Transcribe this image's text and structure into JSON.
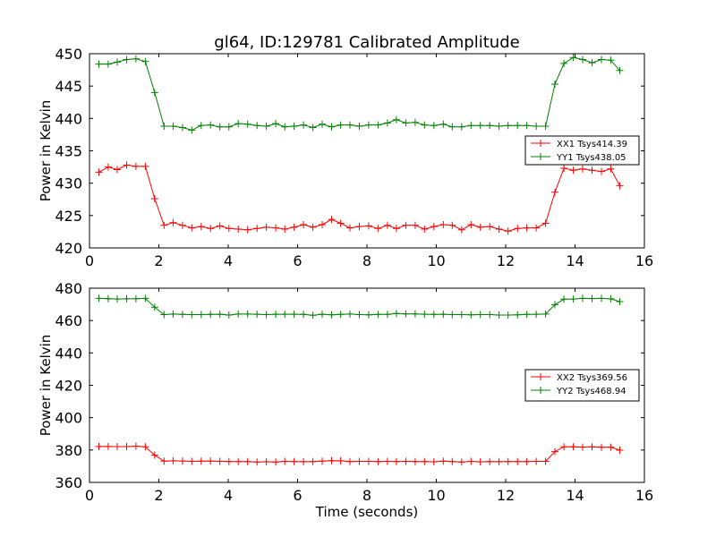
{
  "figure": {
    "title": "gl64, ID:129781 Calibrated Amplitude"
  },
  "chart_data": [
    {
      "type": "line",
      "title": "gl64, ID:129781 Calibrated Amplitude",
      "xlabel": "",
      "ylabel": "Power in Kelvin",
      "xlim": [
        0,
        16
      ],
      "ylim": [
        420,
        450
      ],
      "xticks": [
        0,
        2,
        4,
        6,
        8,
        10,
        12,
        14,
        16
      ],
      "yticks": [
        420,
        425,
        430,
        435,
        440,
        445,
        450
      ],
      "grid": false,
      "legend_position": "center-right",
      "x": [
        0.27,
        0.54,
        0.8,
        1.07,
        1.34,
        1.61,
        1.88,
        2.15,
        2.41,
        2.68,
        2.95,
        3.22,
        3.49,
        3.76,
        4.02,
        4.29,
        4.56,
        4.83,
        5.1,
        5.37,
        5.63,
        5.9,
        6.17,
        6.44,
        6.71,
        6.98,
        7.24,
        7.51,
        7.78,
        8.05,
        8.32,
        8.59,
        8.85,
        9.12,
        9.39,
        9.66,
        9.93,
        10.2,
        10.46,
        10.73,
        11.0,
        11.27,
        11.54,
        11.81,
        12.07,
        12.34,
        12.61,
        12.88,
        13.15,
        13.42,
        13.68,
        13.95,
        14.22,
        14.49,
        14.76,
        15.03,
        15.29
      ],
      "series": [
        {
          "name": "XX1 Tsys414.39",
          "color": "#ff0000",
          "values": [
            431.7,
            432.5,
            432.1,
            432.8,
            432.6,
            432.6,
            427.6,
            423.5,
            423.9,
            423.5,
            423.1,
            423.3,
            423.0,
            423.4,
            423.0,
            422.9,
            422.8,
            423.0,
            423.2,
            423.1,
            422.9,
            423.2,
            423.6,
            423.2,
            423.6,
            424.4,
            423.8,
            423.1,
            423.3,
            423.4,
            423.0,
            423.5,
            423.0,
            423.5,
            423.5,
            422.9,
            423.3,
            423.6,
            423.5,
            422.8,
            423.6,
            423.2,
            423.3,
            422.9,
            422.6,
            423.0,
            423.1,
            423.1,
            423.8,
            428.6,
            432.3,
            432.0,
            432.2,
            432.0,
            431.8,
            432.2,
            429.6
          ]
        },
        {
          "name": "YY1 Tsys438.05",
          "color": "#008000",
          "values": [
            448.4,
            448.4,
            448.7,
            449.1,
            449.2,
            448.8,
            444.0,
            438.8,
            438.8,
            438.6,
            438.2,
            438.9,
            439.0,
            438.7,
            438.7,
            439.2,
            439.1,
            438.9,
            438.8,
            439.2,
            438.7,
            438.8,
            439.0,
            438.6,
            439.1,
            438.7,
            439.0,
            439.0,
            438.8,
            439.0,
            439.0,
            439.3,
            439.8,
            439.3,
            439.4,
            439.0,
            438.9,
            439.1,
            438.7,
            438.7,
            438.9,
            438.9,
            438.9,
            438.8,
            438.9,
            438.9,
            438.9,
            438.8,
            438.8,
            445.3,
            448.5,
            449.4,
            449.1,
            448.6,
            449.1,
            449.0,
            447.4
          ]
        }
      ]
    },
    {
      "type": "line",
      "title": "",
      "xlabel": "Time (seconds)",
      "ylabel": "Power in Kelvin",
      "xlim": [
        0,
        16
      ],
      "ylim": [
        360,
        480
      ],
      "xticks": [
        0,
        2,
        4,
        6,
        8,
        10,
        12,
        14,
        16
      ],
      "yticks": [
        360,
        380,
        400,
        420,
        440,
        460,
        480
      ],
      "grid": false,
      "legend_position": "center-right",
      "x": [
        0.27,
        0.54,
        0.8,
        1.07,
        1.34,
        1.61,
        1.88,
        2.15,
        2.41,
        2.68,
        2.95,
        3.22,
        3.49,
        3.76,
        4.02,
        4.29,
        4.56,
        4.83,
        5.1,
        5.37,
        5.63,
        5.9,
        6.17,
        6.44,
        6.71,
        6.98,
        7.24,
        7.51,
        7.78,
        8.05,
        8.32,
        8.59,
        8.85,
        9.12,
        9.39,
        9.66,
        9.93,
        10.2,
        10.46,
        10.73,
        11.0,
        11.27,
        11.54,
        11.81,
        12.07,
        12.34,
        12.61,
        12.88,
        13.15,
        13.42,
        13.68,
        13.95,
        14.22,
        14.49,
        14.76,
        15.03,
        15.29
      ],
      "series": [
        {
          "name": "XX2 Tsys369.56",
          "color": "#ff0000",
          "values": [
            382.2,
            382.2,
            382.1,
            382.1,
            382.4,
            382.0,
            376.8,
            373.1,
            373.3,
            373.2,
            373.0,
            373.1,
            373.2,
            373.0,
            372.9,
            372.9,
            372.9,
            372.6,
            372.8,
            372.6,
            373.0,
            372.9,
            372.8,
            372.9,
            373.1,
            373.4,
            373.3,
            372.9,
            373.0,
            373.0,
            372.9,
            373.0,
            372.9,
            373.0,
            372.9,
            372.9,
            372.7,
            373.1,
            372.9,
            372.6,
            373.0,
            372.7,
            372.9,
            372.8,
            372.9,
            372.9,
            372.9,
            373.0,
            373.0,
            379.0,
            382.0,
            382.0,
            381.8,
            382.0,
            381.7,
            381.8,
            379.9
          ]
        },
        {
          "name": "YY2 Tsys468.94",
          "color": "#008000",
          "values": [
            473.7,
            473.5,
            473.3,
            473.4,
            473.5,
            473.7,
            468.2,
            463.7,
            464.0,
            463.8,
            463.7,
            463.7,
            463.8,
            463.9,
            463.4,
            464.0,
            464.0,
            463.9,
            463.7,
            463.9,
            463.9,
            463.9,
            463.8,
            463.3,
            463.9,
            463.6,
            463.8,
            464.0,
            463.7,
            463.6,
            463.8,
            463.8,
            464.4,
            464.1,
            464.1,
            463.9,
            463.8,
            463.9,
            463.7,
            463.7,
            463.6,
            463.7,
            463.7,
            463.4,
            463.4,
            463.5,
            463.8,
            463.9,
            464.0,
            469.8,
            473.2,
            473.3,
            473.7,
            473.6,
            473.7,
            473.4,
            471.7
          ]
        }
      ]
    }
  ]
}
